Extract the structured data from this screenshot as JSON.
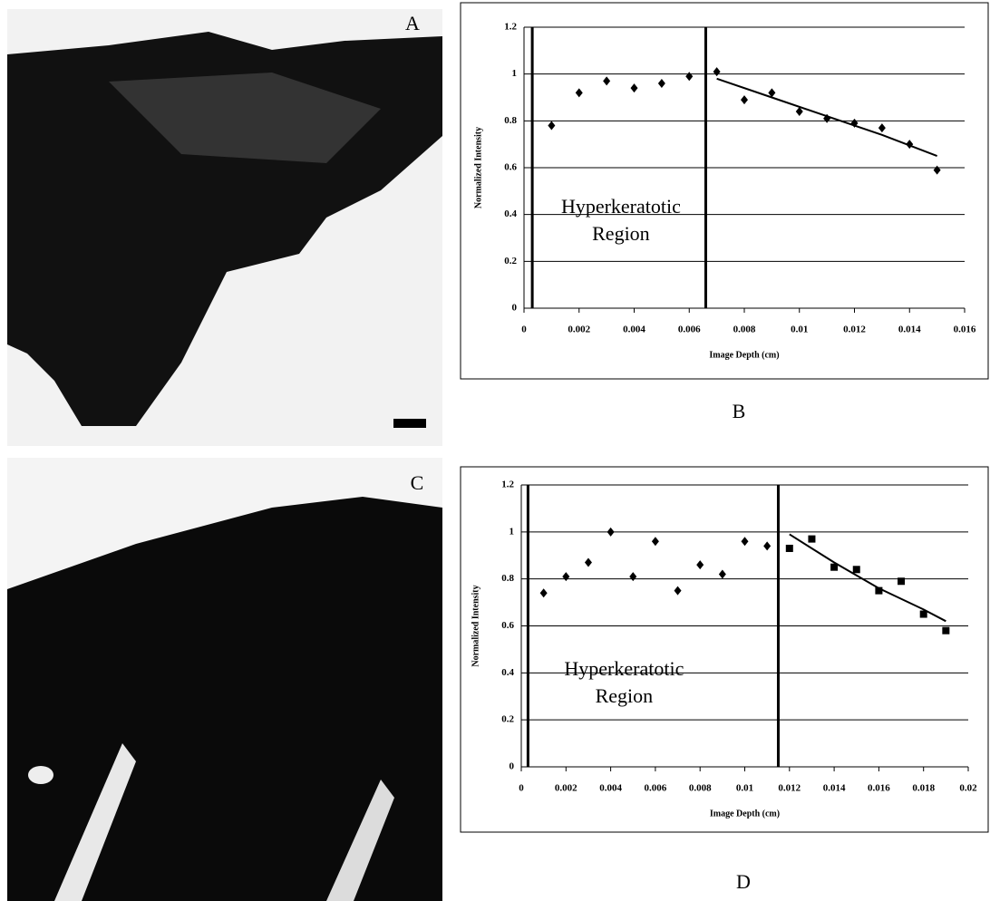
{
  "panel_labels": [
    "A",
    "B",
    "C",
    "D"
  ],
  "chart_data": [
    {
      "type": "scatter",
      "xlabel": "Image Depth (cm)",
      "ylabel": "Normalized Intensity",
      "annotation_lines": [
        "Hyperkeratotic",
        "Region"
      ],
      "xlim": [
        0,
        0.016
      ],
      "xticks": [
        0,
        0.002,
        0.004,
        0.006,
        0.008,
        0.01,
        0.012,
        0.014,
        0.016
      ],
      "ylim": [
        0,
        1.2
      ],
      "yticks": [
        0,
        0.2,
        0.4,
        0.6,
        0.8,
        1,
        1.2
      ],
      "grid": true,
      "vlines": [
        0.0003,
        0.0066
      ],
      "series": [
        {
          "marker": "diamond",
          "color": "#000000",
          "x": [
            0.001,
            0.002,
            0.003,
            0.004,
            0.005,
            0.006,
            0.007,
            0.008,
            0.009,
            0.01,
            0.011,
            0.012,
            0.013,
            0.014,
            0.015
          ],
          "values": [
            0.78,
            0.92,
            0.97,
            0.94,
            0.96,
            0.99,
            1.01,
            0.89,
            0.92,
            0.84,
            0.81,
            0.79,
            0.77,
            0.7,
            0.59
          ]
        },
        {
          "marker": "line",
          "color": "#000000",
          "x": [
            0.007,
            0.009,
            0.011,
            0.013,
            0.015
          ],
          "values": [
            0.98,
            0.9,
            0.82,
            0.74,
            0.65
          ]
        }
      ]
    },
    {
      "type": "scatter",
      "xlabel": "Image Depth (cm)",
      "ylabel": "Normalized Intensity",
      "annotation_lines": [
        "Hyperkeratotic",
        "Region"
      ],
      "xlim": [
        0,
        0.02
      ],
      "xticks": [
        0,
        0.002,
        0.004,
        0.006,
        0.008,
        0.01,
        0.012,
        0.014,
        0.016,
        0.018,
        0.02
      ],
      "ylim": [
        0,
        1.2
      ],
      "yticks": [
        0,
        0.2,
        0.4,
        0.6,
        0.8,
        1,
        1.2
      ],
      "grid": true,
      "vlines": [
        0.0003,
        0.0115
      ],
      "series": [
        {
          "marker": "diamond",
          "color": "#000000",
          "x": [
            0.001,
            0.002,
            0.003,
            0.004,
            0.005,
            0.006,
            0.007,
            0.008,
            0.009,
            0.01,
            0.011
          ],
          "values": [
            0.74,
            0.81,
            0.87,
            1.0,
            0.81,
            0.96,
            0.75,
            0.86,
            0.82,
            0.96,
            0.94
          ]
        },
        {
          "marker": "square",
          "color": "#000000",
          "x": [
            0.012,
            0.013,
            0.014,
            0.015,
            0.016,
            0.017,
            0.018,
            0.019
          ],
          "values": [
            0.93,
            0.97,
            0.85,
            0.84,
            0.75,
            0.79,
            0.65,
            0.58
          ]
        },
        {
          "marker": "line",
          "color": "#000000",
          "x": [
            0.012,
            0.014,
            0.016,
            0.018,
            0.019
          ],
          "values": [
            0.99,
            0.87,
            0.76,
            0.67,
            0.62
          ]
        }
      ]
    }
  ]
}
